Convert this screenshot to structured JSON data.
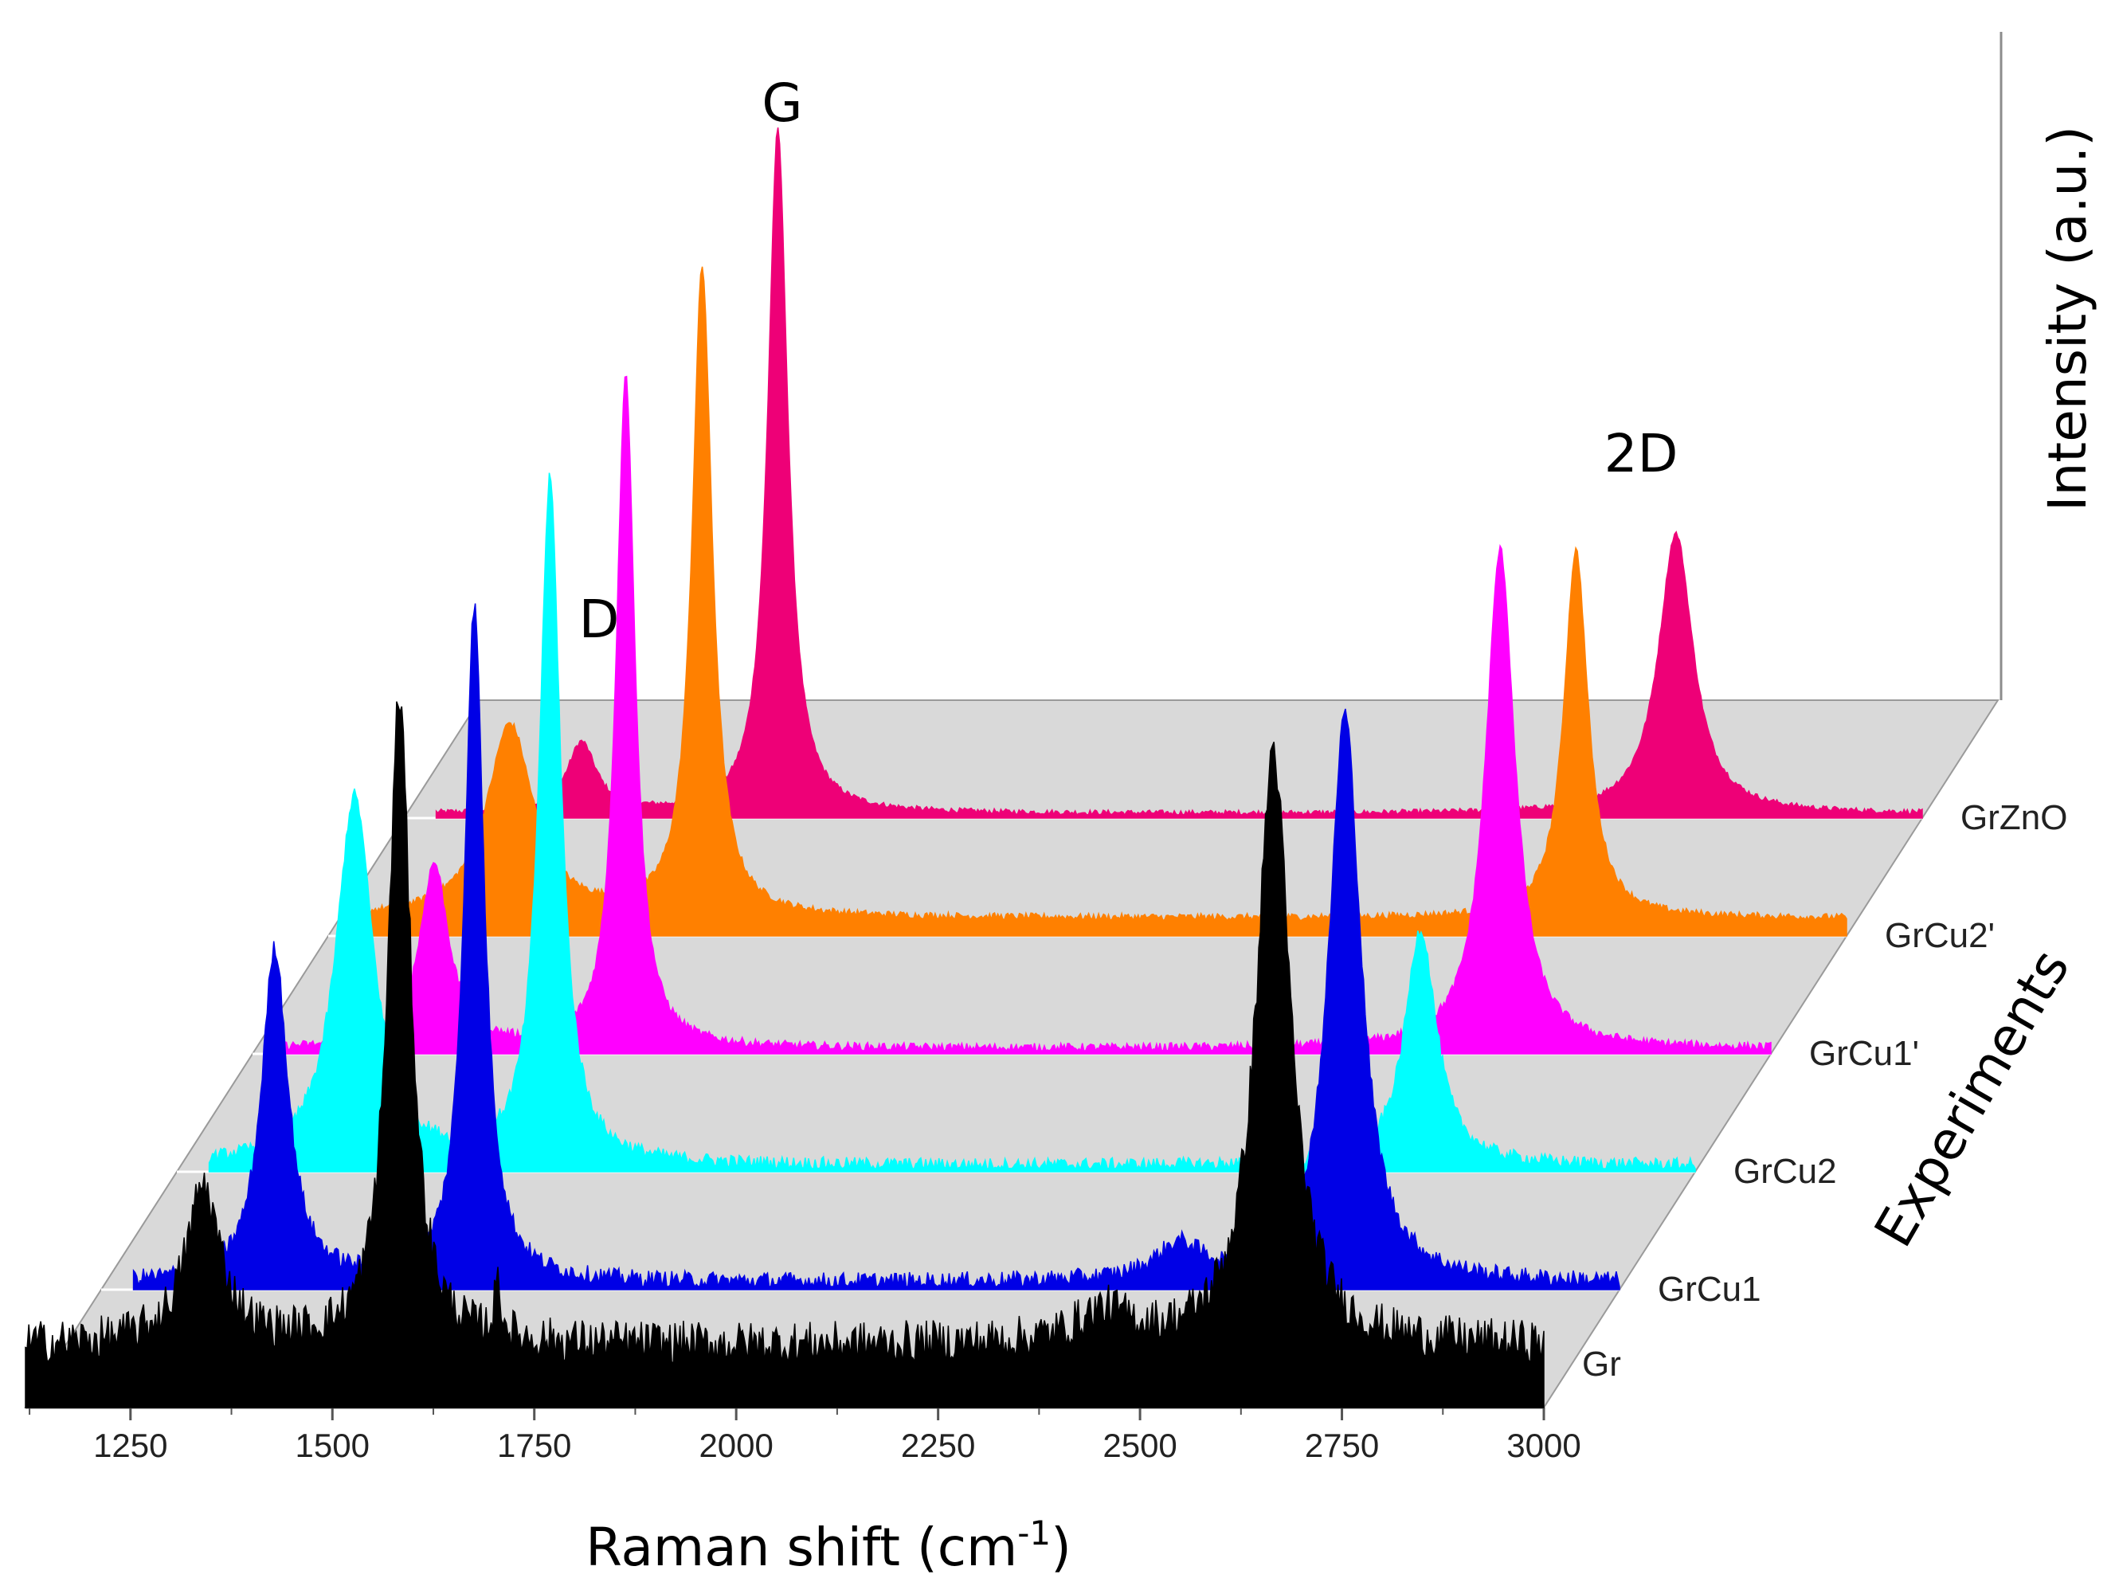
{
  "chart_data": {
    "type": "area",
    "style": "3d-waterfall",
    "xlabel": "Raman shift (cm",
    "xlabel_sup": "-1",
    "xlabel_close": ")",
    "ylabel": "Intensity (a.u.)",
    "zlabel": "Experiments",
    "xlim": [
      1120,
      3000
    ],
    "xticks": [
      1250,
      1500,
      1750,
      2000,
      2250,
      2500,
      2750,
      3000
    ],
    "annotations": [
      {
        "id": "D",
        "text": "D"
      },
      {
        "id": "G",
        "text": "G"
      },
      {
        "id": "2D",
        "text": "2D"
      }
    ],
    "series": [
      {
        "name": "Gr",
        "color": "#000000",
        "baseline": 0.01,
        "noise": 0.05,
        "peaks": [
          {
            "center": 1340,
            "height": 0.18,
            "width": 26
          },
          {
            "center": 1583,
            "height": 0.74,
            "width": 17
          },
          {
            "center": 1705,
            "height": 0.06,
            "width": 5
          },
          {
            "center": 2455,
            "height": 0.035,
            "width": 40
          },
          {
            "center": 2665,
            "height": 0.68,
            "width": 25
          }
        ]
      },
      {
        "name": "GrCu1",
        "color": "#0000e6",
        "baseline": 0.0,
        "noise": 0.02,
        "peaks": [
          {
            "center": 1335,
            "height": 0.38,
            "width": 20
          },
          {
            "center": 1582,
            "height": 0.77,
            "width": 15
          },
          {
            "center": 2455,
            "height": 0.04,
            "width": 35
          },
          {
            "center": 2660,
            "height": 0.65,
            "width": 24
          }
        ]
      },
      {
        "name": "GrCu2",
        "color": "#00ffff",
        "baseline": 0.0,
        "noise": 0.015,
        "peaks": [
          {
            "center": 1340,
            "height": 0.42,
            "width": 28
          },
          {
            "center": 1582,
            "height": 0.78,
            "width": 16
          },
          {
            "center": 2660,
            "height": 0.27,
            "width": 24
          }
        ]
      },
      {
        "name": "GrCu1'",
        "color": "#ff00ff",
        "baseline": 0.0,
        "noise": 0.01,
        "peaks": [
          {
            "center": 1345,
            "height": 0.21,
            "width": 22
          },
          {
            "center": 1582,
            "height": 0.77,
            "width": 14
          },
          {
            "center": 2665,
            "height": 0.57,
            "width": 22
          }
        ]
      },
      {
        "name": "GrCu2'",
        "color": "#ff8000",
        "baseline": 0.015,
        "noise": 0.008,
        "peaks": [
          {
            "center": 1345,
            "height": 0.22,
            "width": 35
          },
          {
            "center": 1583,
            "height": 0.74,
            "width": 15
          },
          {
            "center": 2665,
            "height": 0.42,
            "width": 18
          }
        ]
      },
      {
        "name": "GrZnO",
        "color": "#ee0077",
        "baseline": 0.0,
        "noise": 0.006,
        "peaks": [
          {
            "center": 1340,
            "height": 0.08,
            "width": 22
          },
          {
            "center": 1583,
            "height": 0.78,
            "width": 15
          },
          {
            "center": 2695,
            "height": 0.32,
            "width": 26
          }
        ]
      }
    ]
  }
}
